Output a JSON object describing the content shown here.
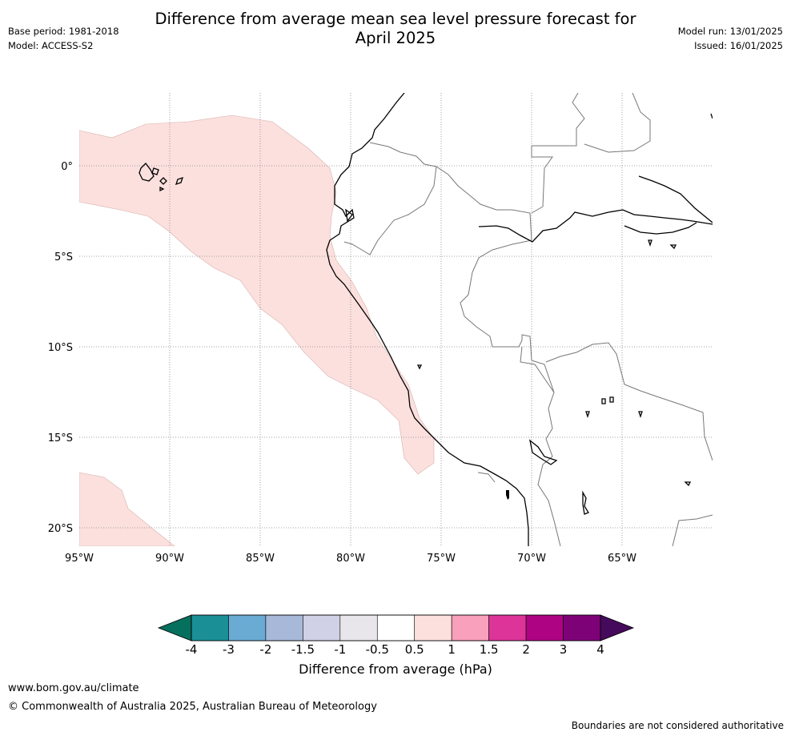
{
  "header": {
    "title_line1": "Difference from average mean sea level pressure forecast for",
    "title_line2": "April 2025",
    "base_period": "Base period: 1981-2018",
    "model": "Model: ACCESS-S2",
    "model_run": "Model run: 13/01/2025",
    "issued": "Issued: 16/01/2025"
  },
  "map": {
    "lon_ticks": [
      "95°W",
      "90°W",
      "85°W",
      "80°W",
      "75°W",
      "70°W",
      "65°W"
    ],
    "lat_ticks": [
      "0°",
      "5°S",
      "10°S",
      "15°S",
      "20°S"
    ],
    "anomaly_fill_color": "#fbe0de",
    "grid": true
  },
  "colorbar": {
    "label": "Difference from average (hPa)",
    "tick_labels": [
      "-4",
      "-3",
      "-2",
      "-1.5",
      "-1",
      "-0.5",
      "0.5",
      "1",
      "1.5",
      "2",
      "3",
      "4"
    ],
    "colors": [
      "#1a8f96",
      "#6aabd3",
      "#a8b8d8",
      "#d0d0e6",
      "#e8e6ea",
      "#ffffff",
      "#fce0de",
      "#f8a0bc",
      "#dc3498",
      "#ae0382",
      "#7d0278"
    ],
    "extend_low_color": "#06705e",
    "extend_high_color": "#460a5c"
  },
  "footer": {
    "url": "www.bom.gov.au/climate",
    "copyright": "© Commonwealth of Australia 2025, Australian Bureau of Meteorology",
    "disclaimer": "Boundaries are not considered authoritative"
  }
}
